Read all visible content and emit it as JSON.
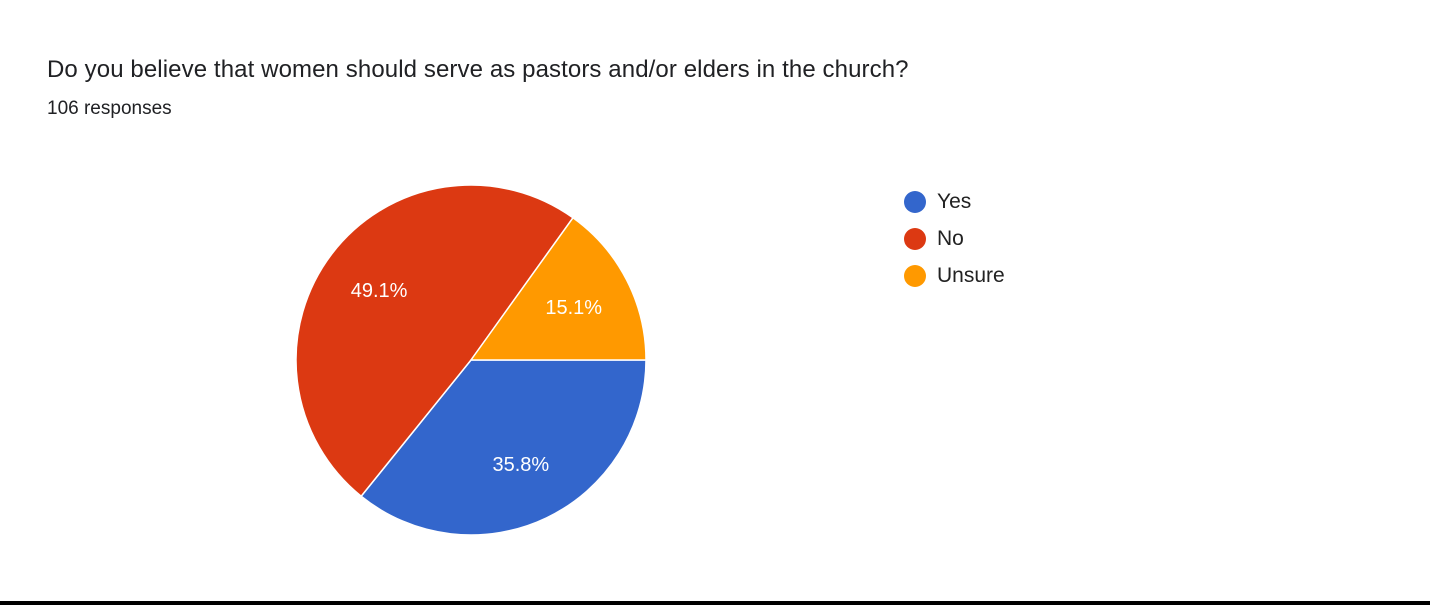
{
  "header": {
    "title": "Do you believe that women should serve as pastors and/or elders in the church?",
    "responses": "106 responses"
  },
  "legend": {
    "items": [
      {
        "label": "Yes",
        "color": "#3366cc"
      },
      {
        "label": "No",
        "color": "#dc3912"
      },
      {
        "label": "Unsure",
        "color": "#ff9900"
      }
    ]
  },
  "slice_labels": {
    "yes": "35.8%",
    "no": "49.1%",
    "unsure": "15.1%"
  },
  "chart_data": {
    "type": "pie",
    "title": "Do you believe that women should serve as pastors and/or elders in the church?",
    "subtitle": "106 responses",
    "categories": [
      "Yes",
      "No",
      "Unsure"
    ],
    "values": [
      35.8,
      49.1,
      15.1
    ],
    "counts": [
      38,
      52,
      16
    ],
    "colors": [
      "#3366cc",
      "#dc3912",
      "#ff9900"
    ],
    "value_labels": [
      "35.8%",
      "49.1%",
      "15.1%"
    ],
    "legend_position": "right"
  }
}
